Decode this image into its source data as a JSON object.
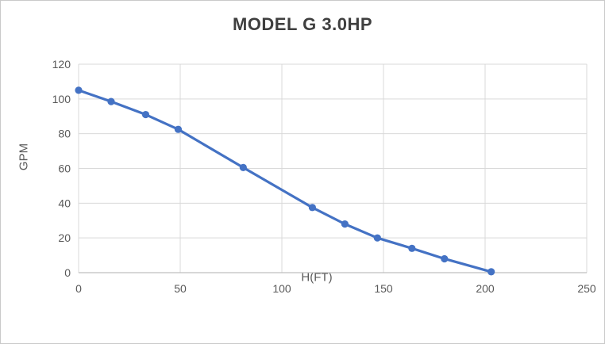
{
  "chart_data": {
    "type": "line",
    "title": "MODEL G 3.0HP",
    "xlabel": "H(FT)",
    "ylabel": "GPM",
    "x": [
      0,
      16,
      33,
      49,
      81,
      115,
      131,
      147,
      164,
      180,
      203
    ],
    "y": [
      105,
      98.5,
      91,
      82.5,
      60.5,
      37.5,
      28,
      20,
      14,
      8,
      0.5
    ],
    "xlim": [
      0,
      250
    ],
    "ylim": [
      0,
      120
    ],
    "xticks": [
      0,
      50,
      100,
      150,
      200,
      250
    ],
    "yticks": [
      0,
      20,
      40,
      60,
      80,
      100,
      120
    ],
    "grid": true,
    "legend": "none",
    "colors": {
      "line": "#4472c4",
      "marker": "#4472c4",
      "gridline": "#d9d9d9",
      "axis_line": "#bfbfbf",
      "tick_text": "#595959",
      "title_text": "#3f3f3f",
      "background": "#ffffff",
      "border": "#c9c9c9"
    }
  }
}
